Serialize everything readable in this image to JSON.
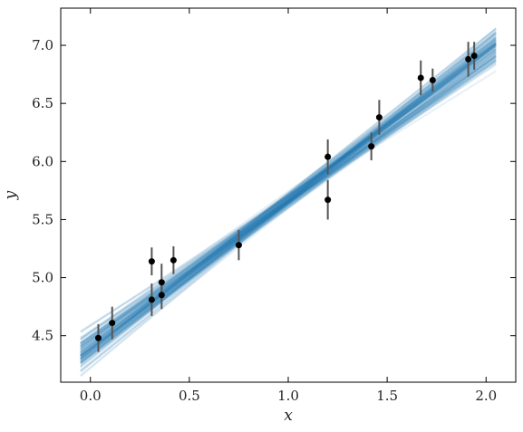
{
  "chart_data": {
    "type": "scatter",
    "title": "",
    "xlabel": "x",
    "ylabel": "y",
    "xlim": [
      -0.15,
      2.15
    ],
    "ylim": [
      4.1,
      7.32
    ],
    "xticks": [
      0.0,
      0.5,
      1.0,
      1.5,
      2.0
    ],
    "xtick_labels": [
      "0.0",
      "0.5",
      "1.0",
      "1.5",
      "2.0"
    ],
    "yticks": [
      4.5,
      5.0,
      5.5,
      6.0,
      6.5,
      7.0
    ],
    "ytick_labels": [
      "4.5",
      "5.0",
      "5.5",
      "6.0",
      "6.5",
      "7.0"
    ],
    "grid": false,
    "series": [
      {
        "kind": "errorbar",
        "x": [
          0.04,
          0.11,
          0.31,
          0.31,
          0.36,
          0.36,
          0.42,
          0.75,
          1.2,
          1.2,
          1.42,
          1.46,
          1.67,
          1.73,
          1.91,
          1.94
        ],
        "y": [
          4.48,
          4.61,
          4.81,
          5.14,
          4.85,
          4.96,
          5.15,
          5.28,
          5.67,
          6.04,
          6.13,
          6.38,
          6.72,
          6.7,
          6.88,
          6.91
        ],
        "yerr": [
          0.12,
          0.14,
          0.14,
          0.12,
          0.12,
          0.16,
          0.12,
          0.13,
          0.17,
          0.15,
          0.12,
          0.15,
          0.15,
          0.1,
          0.15,
          0.12
        ],
        "color": "#000000"
      },
      {
        "kind": "posterior_lines",
        "x_range": [
          -0.05,
          2.05
        ],
        "intercept_center": 4.42,
        "slope_center": 1.25,
        "intercept_spread": 0.1,
        "slope_spread": 0.07,
        "count": 100,
        "color": "#1f77b4",
        "opacity": 0.1
      }
    ]
  }
}
